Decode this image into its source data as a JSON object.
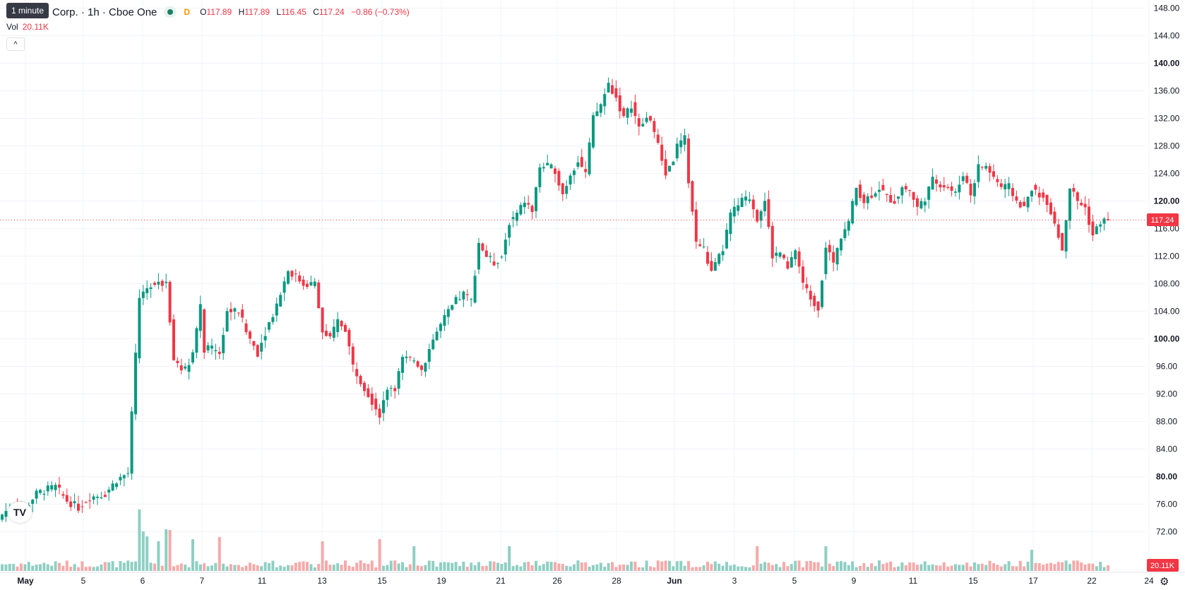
{
  "legend": {
    "symbol_text": "Corp. · 1h · Cboe One",
    "d_mark": "D",
    "o_label": "O",
    "o_value": "117.89",
    "h_label": "H",
    "h_value": "117.89",
    "l_label": "L",
    "l_value": "116.45",
    "c_label": "C",
    "c_value": "117.24",
    "change": "−0.86 (−0.73%)"
  },
  "tooltip": "1 minute",
  "volume": {
    "label": "Vol",
    "value": "20.11K"
  },
  "badges": {
    "last_price": "117.24",
    "last_volume": "20.11K"
  },
  "icons": {
    "collapse": "chevron-up-icon",
    "logo": "tradingview-logo",
    "settings": "gear-icon"
  },
  "logo_text": "TV",
  "colors": {
    "up": "#089981",
    "down": "#f23645",
    "up_volume": "#8fcfc3",
    "down_volume": "#f7a9a9",
    "last_price_line": "#f23645"
  },
  "chart_data": {
    "type": "candlestick",
    "interval": "1h",
    "yaxis": {
      "ticks": [
        72,
        76,
        80,
        84,
        88,
        92,
        96,
        100,
        104,
        108,
        112,
        116,
        120,
        124,
        128,
        132,
        136,
        140,
        144,
        148
      ],
      "bold_ticks": [
        80,
        100,
        120,
        140
      ],
      "decimals": 2
    },
    "xaxis": {
      "labels": [
        {
          "text": "May",
          "bold": true
        },
        {
          "text": "5"
        },
        {
          "text": "6"
        },
        {
          "text": "7"
        },
        {
          "text": "11"
        },
        {
          "text": "13"
        },
        {
          "text": "15"
        },
        {
          "text": "19"
        },
        {
          "text": "21"
        },
        {
          "text": "26"
        },
        {
          "text": "28"
        },
        {
          "text": "Jun",
          "bold": true
        },
        {
          "text": "3"
        },
        {
          "text": "5"
        },
        {
          "text": "9"
        },
        {
          "text": "11"
        },
        {
          "text": "15"
        },
        {
          "text": "17"
        },
        {
          "text": "22"
        },
        {
          "text": "24"
        }
      ],
      "label_keys": [
        0,
        1,
        2,
        3,
        4,
        5,
        6,
        7,
        8,
        9,
        10,
        11,
        12,
        13,
        14,
        15,
        16,
        17,
        18,
        19
      ]
    },
    "last_price": 117.24,
    "anchors": [
      [
        0,
        74.5
      ],
      [
        3,
        76
      ],
      [
        6,
        75.5
      ],
      [
        9,
        77.5
      ],
      [
        11,
        78
      ],
      [
        14,
        78.5
      ],
      [
        17,
        76.5
      ],
      [
        20,
        75.5
      ],
      [
        23,
        77
      ],
      [
        27,
        77.5
      ],
      [
        30,
        79.5
      ],
      [
        33,
        80.5
      ],
      [
        36,
        106
      ],
      [
        39,
        108
      ],
      [
        41,
        108.5
      ],
      [
        43,
        108
      ],
      [
        45,
        97
      ],
      [
        48,
        95.5
      ],
      [
        50,
        98
      ],
      [
        52,
        104.5
      ],
      [
        53,
        98.5
      ],
      [
        55,
        98.5
      ],
      [
        57,
        98
      ],
      [
        59,
        104
      ],
      [
        62,
        104
      ],
      [
        64,
        101
      ],
      [
        67,
        98
      ],
      [
        69,
        101
      ],
      [
        72,
        105
      ],
      [
        75,
        110
      ],
      [
        77,
        109
      ],
      [
        79,
        108
      ],
      [
        82,
        108
      ],
      [
        84,
        101
      ],
      [
        86,
        100
      ],
      [
        88,
        102.5
      ],
      [
        90,
        101.5
      ],
      [
        92,
        96
      ],
      [
        94,
        94
      ],
      [
        96,
        92
      ],
      [
        99,
        89
      ],
      [
        101,
        93
      ],
      [
        103,
        93
      ],
      [
        105,
        97
      ],
      [
        108,
        97
      ],
      [
        110,
        95.5
      ],
      [
        113,
        100
      ],
      [
        116,
        103
      ],
      [
        119,
        105.5
      ],
      [
        121,
        106.5
      ],
      [
        123,
        105.5
      ],
      [
        125,
        114
      ],
      [
        127,
        112
      ],
      [
        129,
        111
      ],
      [
        131,
        112
      ],
      [
        133,
        117
      ],
      [
        135,
        118
      ],
      [
        137,
        120
      ],
      [
        139,
        118.5
      ],
      [
        141,
        125
      ],
      [
        143,
        125
      ],
      [
        145,
        124.5
      ],
      [
        147,
        121
      ],
      [
        149,
        124
      ],
      [
        151,
        126
      ],
      [
        153,
        124
      ],
      [
        155,
        132
      ],
      [
        157,
        134
      ],
      [
        159,
        137
      ],
      [
        161,
        135
      ],
      [
        163,
        132
      ],
      [
        165,
        134
      ],
      [
        167,
        130.5
      ],
      [
        169,
        132
      ],
      [
        170,
        132
      ],
      [
        172,
        128
      ],
      [
        174,
        124
      ],
      [
        176,
        126
      ],
      [
        177,
        128
      ],
      [
        179,
        129
      ],
      [
        180,
        123
      ],
      [
        182,
        114
      ],
      [
        184,
        113
      ],
      [
        186,
        109.5
      ],
      [
        189,
        113
      ],
      [
        191,
        118
      ],
      [
        194,
        120
      ],
      [
        196,
        120.5
      ],
      [
        198,
        117.5
      ],
      [
        200,
        120
      ],
      [
        202,
        112
      ],
      [
        204,
        112.5
      ],
      [
        206,
        110
      ],
      [
        208,
        113
      ],
      [
        210,
        108
      ],
      [
        212,
        106
      ],
      [
        214,
        104.5
      ],
      [
        216,
        113.5
      ],
      [
        218,
        111
      ],
      [
        220,
        115
      ],
      [
        222,
        117
      ],
      [
        224,
        122
      ],
      [
        226,
        120
      ],
      [
        228,
        121
      ],
      [
        230,
        122
      ],
      [
        232,
        120.5
      ],
      [
        234,
        120
      ],
      [
        236,
        122
      ],
      [
        238,
        121.5
      ],
      [
        240,
        119
      ],
      [
        242,
        120.5
      ],
      [
        244,
        123
      ],
      [
        246,
        122.5
      ],
      [
        248,
        122
      ],
      [
        250,
        121
      ],
      [
        252,
        124
      ],
      [
        254,
        121
      ],
      [
        256,
        125
      ],
      [
        258,
        125
      ],
      [
        260,
        123.5
      ],
      [
        262,
        122
      ],
      [
        264,
        122
      ],
      [
        266,
        120
      ],
      [
        268,
        119
      ],
      [
        270,
        122
      ],
      [
        272,
        121
      ],
      [
        274,
        120
      ],
      [
        276,
        117
      ],
      [
        278,
        113
      ],
      [
        280,
        122
      ],
      [
        282,
        120
      ],
      [
        284,
        119
      ],
      [
        286,
        115
      ],
      [
        288,
        117
      ],
      [
        290,
        117.24
      ]
    ],
    "volume_spikes": [
      [
        36,
        87
      ],
      [
        37,
        56
      ],
      [
        38,
        49
      ],
      [
        41,
        42
      ],
      [
        43,
        59
      ],
      [
        44,
        58
      ],
      [
        50,
        45
      ],
      [
        57,
        48
      ],
      [
        84,
        42
      ],
      [
        99,
        45
      ],
      [
        108,
        35
      ],
      [
        133,
        35
      ],
      [
        198,
        35
      ],
      [
        216,
        35
      ],
      [
        270,
        30
      ]
    ],
    "sample_volumes": [
      12,
      8,
      9,
      7,
      10,
      11,
      9,
      13,
      8,
      7,
      10,
      12,
      9,
      8,
      11,
      10,
      7,
      9,
      12,
      8
    ]
  }
}
